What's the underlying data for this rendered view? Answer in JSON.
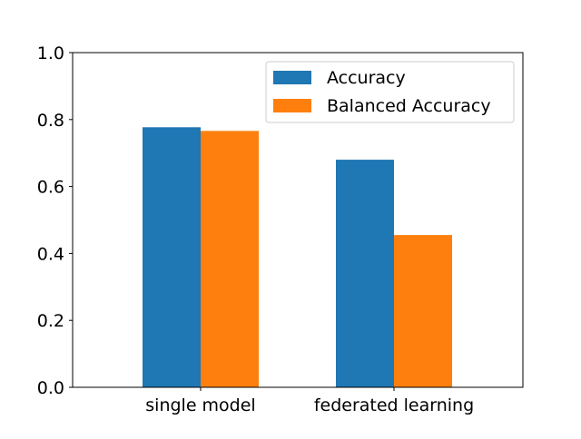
{
  "chart_data": {
    "type": "bar",
    "categories": [
      "single model",
      "federated learning"
    ],
    "series": [
      {
        "name": "Accuracy",
        "values": [
          0.777,
          0.68
        ]
      },
      {
        "name": "Balanced Accuracy",
        "values": [
          0.766,
          0.455
        ]
      }
    ],
    "title": "",
    "xlabel": "",
    "ylabel": "",
    "ylim": [
      0,
      1.0
    ],
    "yticks": [
      "0.0",
      "0.2",
      "0.4",
      "0.6",
      "0.8",
      "1.0"
    ],
    "grid": false,
    "legend_position": "upper-right",
    "colors": {
      "Accuracy": "#1f77b4",
      "Balanced Accuracy": "#ff7f0e"
    }
  }
}
